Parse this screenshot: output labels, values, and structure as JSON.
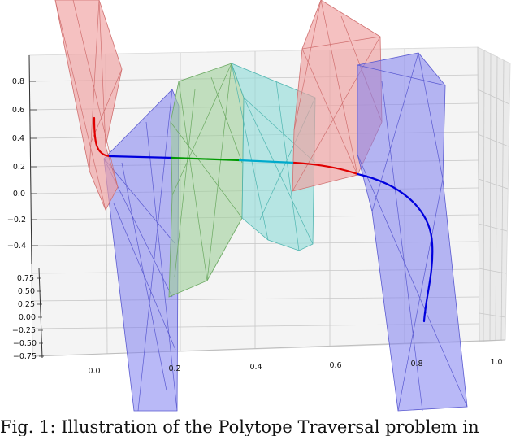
{
  "axes": {
    "x_ticks": [
      "0.0",
      "0.2",
      "0.4",
      "0.6",
      "0.8",
      "1.0"
    ],
    "y_ticks": [
      "0.75",
      "0.50",
      "0.25",
      "0.00",
      "−0.25",
      "−0.50",
      "−0.75"
    ],
    "z_ticks": [
      "0.8",
      "0.6",
      "0.4",
      "0.2",
      "0.0",
      "−0.2",
      "−0.4"
    ],
    "grid": true
  },
  "colors": {
    "blue_polytope": "#7f7ff0",
    "red_polytope": "#f0a0a0",
    "green_polytope": "#9fcf9a",
    "cyan_polytope": "#8fdcd8",
    "path_red": "#e00000",
    "path_blue": "#0000dd",
    "path_green": "#009900",
    "path_cyan": "#00aacc"
  },
  "caption": "Fig. 1: Illustration of the Polytope Traversal problem in"
}
